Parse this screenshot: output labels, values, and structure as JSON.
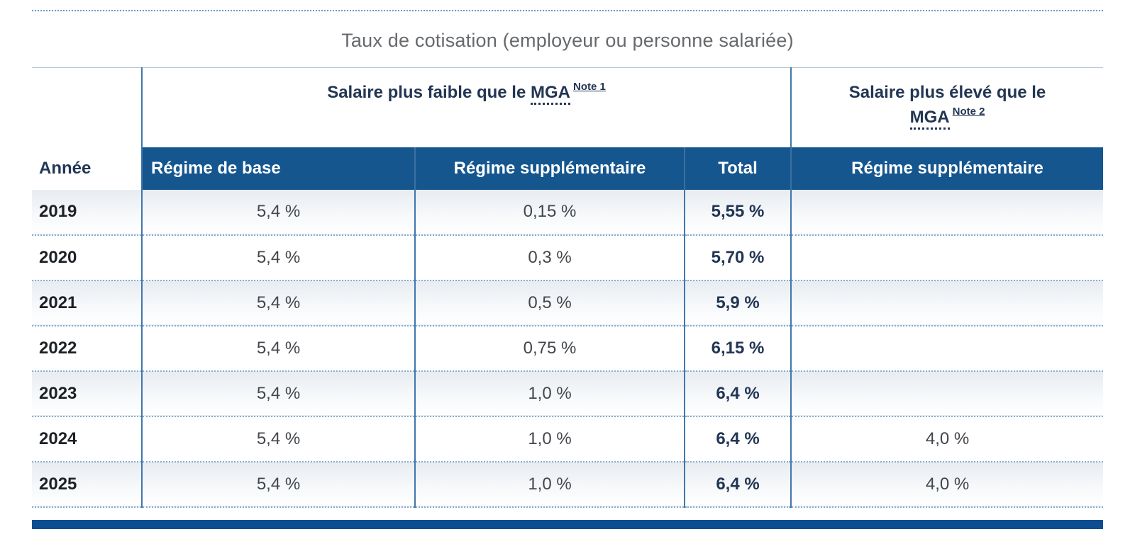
{
  "page": {
    "caption": "Taux de cotisation (employeur ou personne salariée)"
  },
  "table": {
    "group_headers": {
      "left": {
        "text": "Salaire plus faible que le",
        "abbr": "MGA",
        "note": "Note 1"
      },
      "right": {
        "text": "Salaire plus élevé que le",
        "abbr": "MGA",
        "note": "Note 2"
      }
    },
    "columns": [
      "Année",
      "Régime de base",
      "Régime supplémentaire",
      "Total",
      "Régime supplémentaire"
    ],
    "rows": [
      {
        "year": "2019",
        "base": "5,4 %",
        "supp": "0,15 %",
        "total": "5,55 %",
        "supp_high": ""
      },
      {
        "year": "2020",
        "base": "5,4 %",
        "supp": "0,3 %",
        "total": "5,70 %",
        "supp_high": ""
      },
      {
        "year": "2021",
        "base": "5,4 %",
        "supp": "0,5 %",
        "total": "5,9 %",
        "supp_high": ""
      },
      {
        "year": "2022",
        "base": "5,4 %",
        "supp": "0,75 %",
        "total": "6,15 %",
        "supp_high": ""
      },
      {
        "year": "2023",
        "base": "5,4 %",
        "supp": "1,0 %",
        "total": "6,4 %",
        "supp_high": ""
      },
      {
        "year": "2024",
        "base": "5,4 %",
        "supp": "1,0 %",
        "total": "6,4 %",
        "supp_high": "4,0 %"
      },
      {
        "year": "2025",
        "base": "5,4 %",
        "supp": "1,0 %",
        "total": "6,4 %",
        "supp_high": "4,0 %"
      }
    ]
  },
  "chart_data": {
    "type": "table",
    "title": "Taux de cotisation (employeur ou personne salariée)",
    "column_groups": [
      "",
      "Salaire plus faible que le MGA (Note 1)",
      "Salaire plus élevé que le MGA (Note 2)"
    ],
    "columns": [
      "Année",
      "Régime de base",
      "Régime supplémentaire",
      "Total",
      "Régime supplémentaire"
    ],
    "rows": [
      [
        "2019",
        "5,4 %",
        "0,15 %",
        "5,55 %",
        ""
      ],
      [
        "2020",
        "5,4 %",
        "0,3 %",
        "5,70 %",
        ""
      ],
      [
        "2021",
        "5,4 %",
        "0,5 %",
        "5,9 %",
        ""
      ],
      [
        "2022",
        "5,4 %",
        "0,75 %",
        "6,15 %",
        ""
      ],
      [
        "2023",
        "5,4 %",
        "1,0 %",
        "6,4 %",
        ""
      ],
      [
        "2024",
        "5,4 %",
        "1,0 %",
        "6,4 %",
        "4,0 %"
      ],
      [
        "2025",
        "5,4 %",
        "1,0 %",
        "6,4 %",
        "4,0 %"
      ]
    ]
  },
  "colors": {
    "header_blue": "#15568f",
    "navy_text": "#223654",
    "line_blue": "#4077ad",
    "bottom_bar": "#0d4e92",
    "caption_gray": "#66696d"
  }
}
